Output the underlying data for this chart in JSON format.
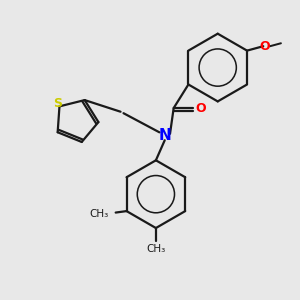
{
  "background_color": "#e8e8e8",
  "bond_color": "#1a1a1a",
  "atom_colors": {
    "N": "#0000ff",
    "O": "#ff0000",
    "S": "#cccc00",
    "C": "#1a1a1a"
  },
  "figsize": [
    3.0,
    3.0
  ],
  "dpi": 100
}
